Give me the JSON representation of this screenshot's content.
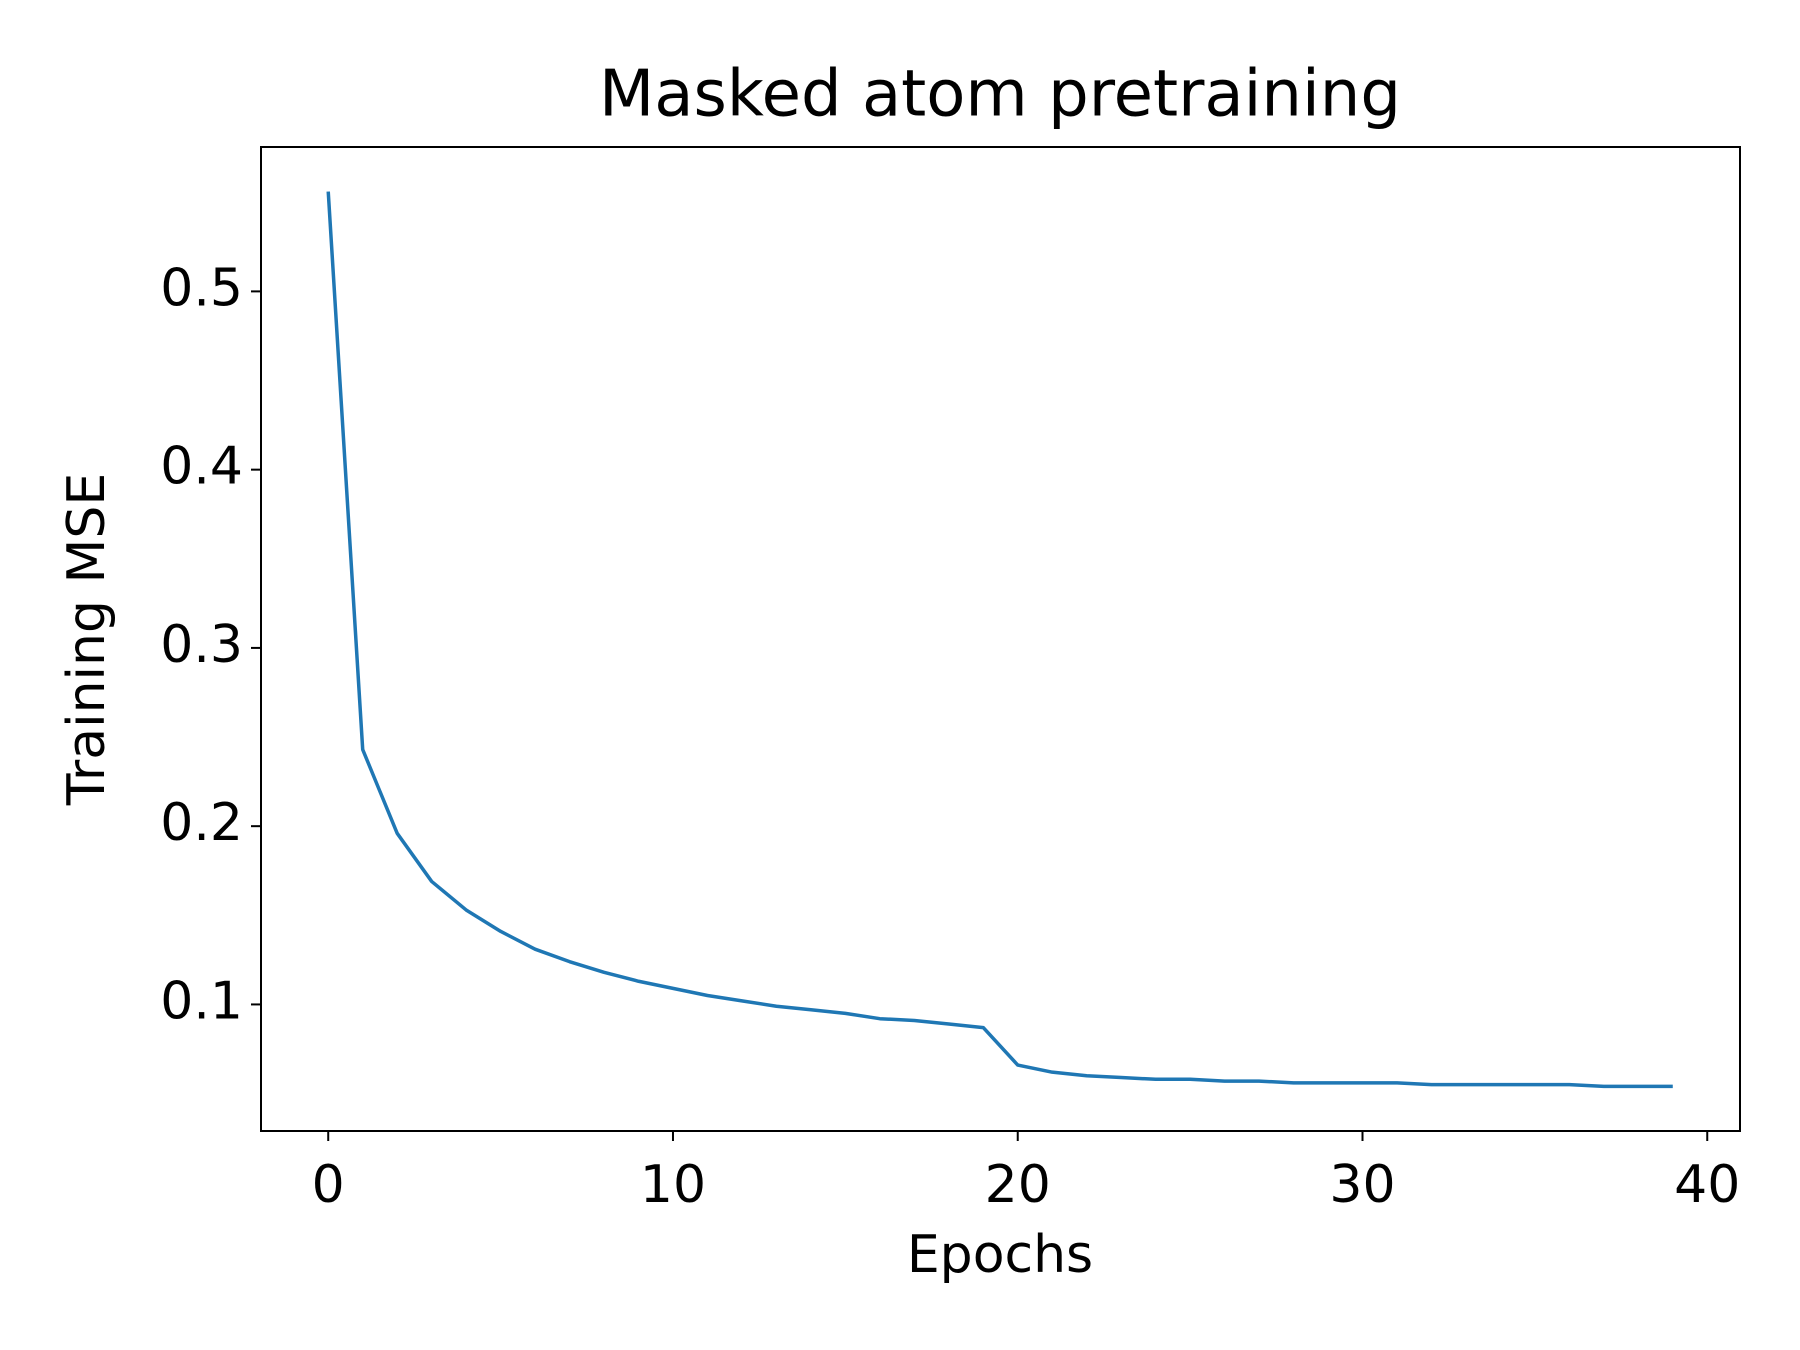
{
  "chart_data": {
    "type": "line",
    "title": "Masked atom pretraining",
    "x_label": "Epochs",
    "y_label": "Training MSE",
    "x": [
      0,
      1,
      2,
      3,
      4,
      5,
      6,
      7,
      8,
      9,
      10,
      11,
      12,
      13,
      14,
      15,
      16,
      17,
      18,
      19,
      20,
      21,
      22,
      23,
      24,
      25,
      26,
      27,
      28,
      29,
      30,
      31,
      32,
      33,
      34,
      35,
      36,
      37,
      38,
      39
    ],
    "series": [
      {
        "color": "#1f77b4",
        "values": [
          0.556,
          0.243,
          0.196,
          0.169,
          0.153,
          0.141,
          0.131,
          0.124,
          0.118,
          0.113,
          0.109,
          0.105,
          0.102,
          0.099,
          0.097,
          0.095,
          0.092,
          0.091,
          0.089,
          0.087,
          0.066,
          0.062,
          0.06,
          0.059,
          0.058,
          0.058,
          0.057,
          0.057,
          0.056,
          0.056,
          0.056,
          0.056,
          0.055,
          0.055,
          0.055,
          0.055,
          0.055,
          0.054,
          0.054,
          0.054
        ]
      }
    ],
    "xlim": [
      -1.95,
      40.95
    ],
    "ylim": [
      0.029,
      0.581
    ],
    "xticks": [
      0,
      10,
      20,
      30,
      40
    ],
    "yticks": [
      0.1,
      0.2,
      0.3,
      0.4,
      0.5
    ]
  }
}
